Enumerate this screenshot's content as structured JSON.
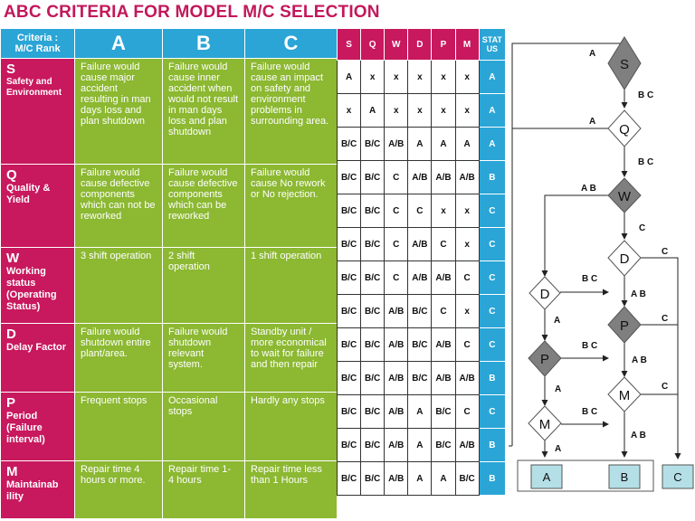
{
  "title": "ABC CRITERIA FOR MODEL M/C SELECTION",
  "criteria_table": {
    "header": {
      "criteria_line1": "Criteria :",
      "criteria_line2": "M/C Rank",
      "a": "A",
      "b": "B",
      "c": "C"
    },
    "rows": [
      {
        "letter": "S",
        "name": "Safety and Environment",
        "a": "Failure would cause major accident resulting in man days loss and plan shutdown",
        "b": "Failure would cause inner accident when would not result in man days loss and plan shutdown",
        "c": "Failure would cause an impact on safety and environment problems in surrounding area."
      },
      {
        "letter": "Q",
        "name": "Quality & Yield",
        "a": "Failure would cause defective components which can not be reworked",
        "b": "Failure would cause defective components which can be reworked",
        "c": "Failure would cause No rework or No rejection."
      },
      {
        "letter": "W",
        "name": "Working status (Operating Status)",
        "a": "3 shift operation",
        "b": "2 shift operation",
        "c": "1 shift operation"
      },
      {
        "letter": "D",
        "name": "Delay Factor",
        "a": "Failure would shutdown entire plant/area.",
        "b": "Failure would shutdown relevant system.",
        "c": "Standby unit / more economical to wait for failure and then repair"
      },
      {
        "letter": "P",
        "name": "Period (Failure interval)",
        "a": "Frequent stops",
        "b": "Occasional stops",
        "c": "Hardly any stops"
      },
      {
        "letter": "M",
        "name": "Maintainab ility",
        "a": "Repair time 4 hours or more.",
        "b": "Repair time 1- 4 hours",
        "c": "Repair time less than 1 Hours"
      }
    ]
  },
  "matrix": {
    "headers": [
      "S",
      "Q",
      "W",
      "D",
      "P",
      "M"
    ],
    "status_header_line1": "STAT",
    "status_header_line2": "US",
    "rows": [
      {
        "cells": [
          "A",
          "x",
          "x",
          "x",
          "x",
          "x"
        ],
        "status": "A"
      },
      {
        "cells": [
          "x",
          "A",
          "x",
          "x",
          "x",
          "x"
        ],
        "status": "A"
      },
      {
        "cells": [
          "B/C",
          "B/C",
          "A/B",
          "A",
          "A",
          "A"
        ],
        "status": "A"
      },
      {
        "cells": [
          "B/C",
          "B/C",
          "C",
          "A/B",
          "A/B",
          "A/B"
        ],
        "status": "B"
      },
      {
        "cells": [
          "B/C",
          "B/C",
          "C",
          "C",
          "x",
          "x"
        ],
        "status": "C"
      },
      {
        "cells": [
          "B/C",
          "B/C",
          "C",
          "A/B",
          "C",
          "x"
        ],
        "status": "C"
      },
      {
        "cells": [
          "B/C",
          "B/C",
          "C",
          "A/B",
          "A/B",
          "C"
        ],
        "status": "C"
      },
      {
        "cells": [
          "B/C",
          "B/C",
          "A/B",
          "B/C",
          "C",
          "x"
        ],
        "status": "C"
      },
      {
        "cells": [
          "B/C",
          "B/C",
          "A/B",
          "B/C",
          "A/B",
          "C"
        ],
        "status": "C"
      },
      {
        "cells": [
          "B/C",
          "B/C",
          "A/B",
          "B/C",
          "A/B",
          "A/B"
        ],
        "status": "B"
      },
      {
        "cells": [
          "B/C",
          "B/C",
          "A/B",
          "A",
          "B/C",
          "C"
        ],
        "status": "C"
      },
      {
        "cells": [
          "B/C",
          "B/C",
          "A/B",
          "A",
          "B/C",
          "A/B"
        ],
        "status": "B"
      },
      {
        "cells": [
          "B/C",
          "B/C",
          "A/B",
          "A",
          "A",
          "B/C"
        ],
        "status": "B"
      }
    ]
  },
  "flowchart": {
    "nodes": {
      "s": "S",
      "q": "Q",
      "w": "W",
      "d1": "D",
      "d2": "D",
      "p1": "P",
      "p2": "P",
      "m1": "M",
      "m2": "M"
    },
    "results": {
      "a": "A",
      "b": "B",
      "c": "C"
    },
    "edge_labels": {
      "s_a": "A",
      "s_bc": "B C",
      "q_a": "A",
      "q_bc": "B C",
      "w_ab": "A B",
      "w_c": "C",
      "d2_c": "C",
      "d2_ab": "A B",
      "d1_bc": "B C",
      "d1_a": "A",
      "p2_c": "C",
      "p2_ab": "A B",
      "p1_bc": "B C",
      "p1_a": "A",
      "m2_c": "C",
      "m2_ab": "A B",
      "m1_bc": "B C",
      "m1_a": "A"
    },
    "colors": {
      "dark_node": "#7f7f7f",
      "light_node": "#ffffff",
      "result_box": "#b4dfe6"
    }
  }
}
